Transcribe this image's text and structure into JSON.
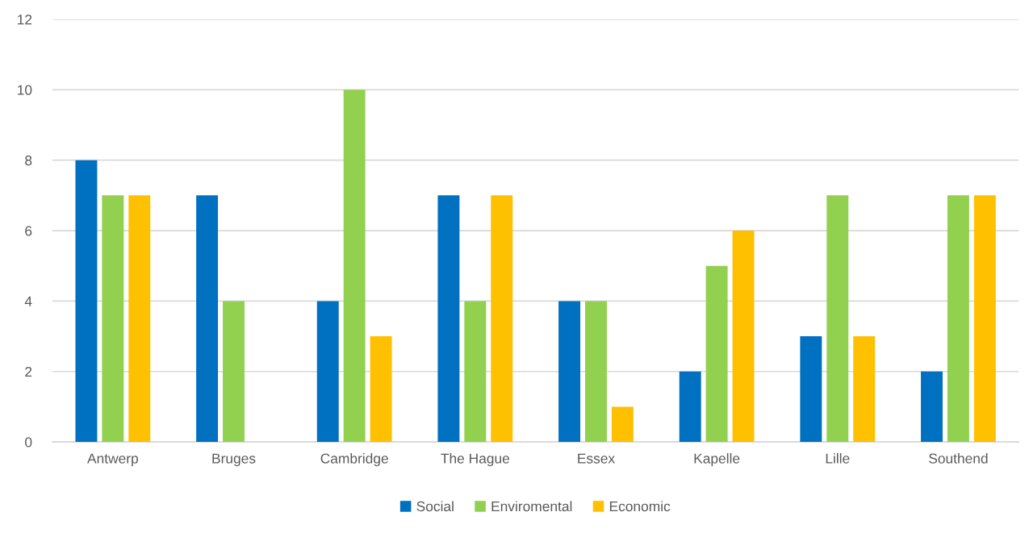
{
  "chart_data": {
    "type": "bar",
    "categories": [
      "Antwerp",
      "Bruges",
      "Cambridge",
      "The Hague",
      "Essex",
      "Kapelle",
      "Lille",
      "Southend"
    ],
    "series": [
      {
        "name": "Social",
        "color": "#0070c0",
        "values": [
          8,
          7,
          4,
          7,
          4,
          2,
          3,
          2
        ]
      },
      {
        "name": "Enviromental",
        "color": "#92d050",
        "values": [
          7,
          4,
          10,
          4,
          4,
          5,
          7,
          7
        ]
      },
      {
        "name": "Economic",
        "color": "#ffc000",
        "values": [
          7,
          0,
          3,
          7,
          1,
          6,
          3,
          7
        ]
      }
    ],
    "ylim": [
      0,
      12
    ],
    "yticks": [
      0,
      2,
      4,
      6,
      8,
      10,
      12
    ],
    "grid": "y",
    "legend": "bottom"
  }
}
